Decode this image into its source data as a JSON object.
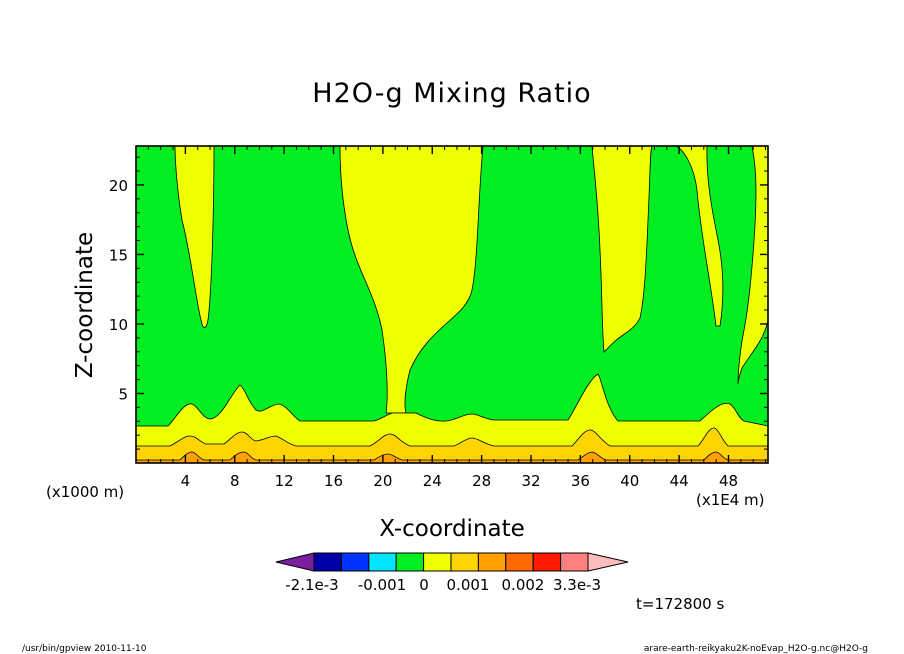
{
  "chart_data": {
    "type": "heatmap",
    "title": "H2O-g Mixing Ratio",
    "xlabel": "X-coordinate",
    "ylabel": "Z-coordinate",
    "x_unit_left": "(x1000 m)",
    "x_unit_right": "(x1E4 m)",
    "xlim": [
      0,
      51.2
    ],
    "ylim": [
      0,
      22.8
    ],
    "x_ticks": [
      4,
      8,
      12,
      16,
      20,
      24,
      28,
      32,
      36,
      40,
      44,
      48
    ],
    "y_ticks": [
      5,
      10,
      15,
      20
    ],
    "time_label": "t=172800 s",
    "colorbar": {
      "colors": [
        "#7a1fa0",
        "#0000a8",
        "#0033ff",
        "#00e5ff",
        "#00ee22",
        "#eeff00",
        "#ffd400",
        "#ffa000",
        "#ff6a00",
        "#ff1a00",
        "#ff7f7f",
        "#ffbcbc"
      ],
      "tick_labels": [
        "-2.1e-3",
        "-0.001",
        "0",
        "0.001",
        "0.002",
        "3.3e-3"
      ]
    },
    "field_colors": {
      "green": "#00ee22",
      "yellow": "#eeff00",
      "gold": "#ffd400",
      "orange": "#ffa000"
    }
  },
  "footer": {
    "left": "/usr/bin/gpview   2010-11-10",
    "right": "arare-earth-reikyaku2K-noEvap_H2O-g.nc@H2O-g"
  }
}
